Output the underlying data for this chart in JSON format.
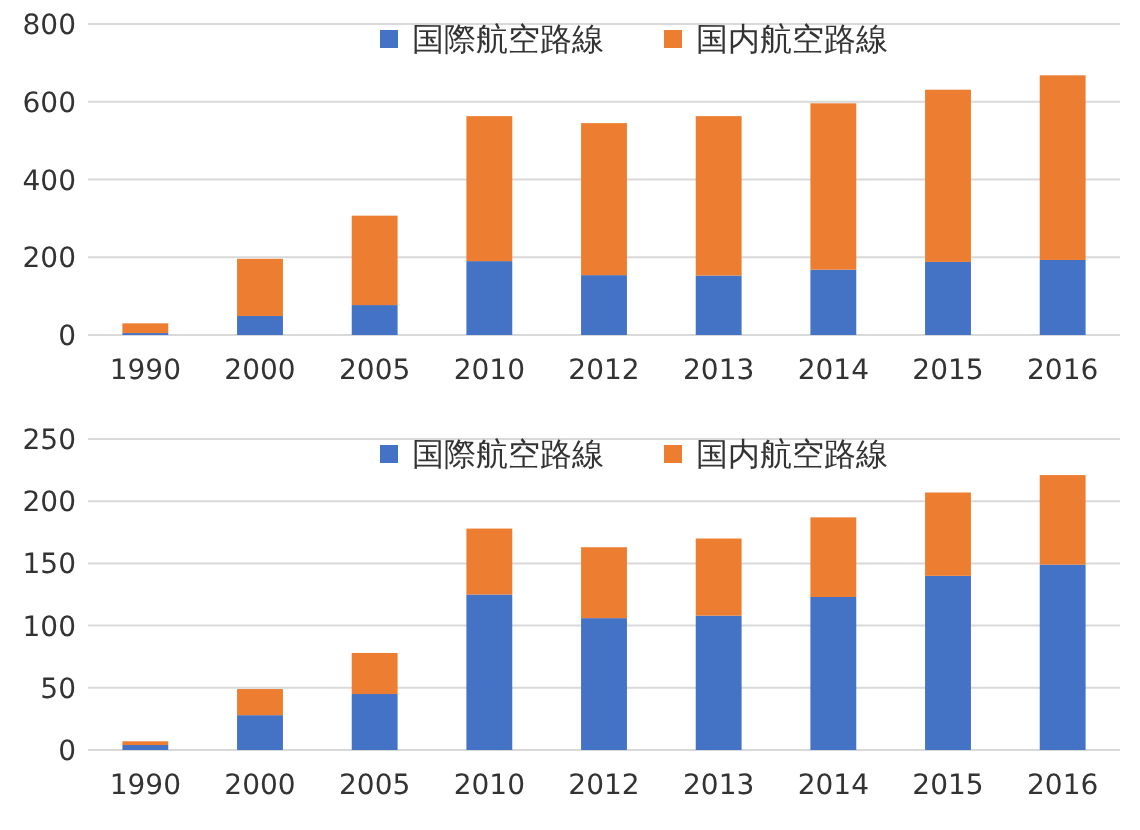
{
  "chart_data": [
    {
      "type": "bar",
      "stacked": true,
      "categories": [
        "1990",
        "2000",
        "2005",
        "2010",
        "2012",
        "2013",
        "2014",
        "2015",
        "2016"
      ],
      "series": [
        {
          "name": "国際航空路線",
          "color": "#4472c4",
          "values": [
            5,
            49,
            77,
            190,
            154,
            153,
            168,
            188,
            193
          ]
        },
        {
          "name": "国内航空路線",
          "color": "#ed7d31",
          "values": [
            25,
            147,
            230,
            373,
            391,
            410,
            428,
            443,
            475
          ]
        }
      ],
      "ylim": [
        0,
        800
      ],
      "yticks": [
        0,
        200,
        400,
        600,
        800
      ],
      "grid": "y",
      "legend": "top"
    },
    {
      "type": "bar",
      "stacked": true,
      "categories": [
        "1990",
        "2000",
        "2005",
        "2010",
        "2012",
        "2013",
        "2014",
        "2015",
        "2016"
      ],
      "series": [
        {
          "name": "国際航空路線",
          "color": "#4472c4",
          "values": [
            4,
            28,
            45,
            125,
            106,
            108,
            123,
            140,
            149
          ]
        },
        {
          "name": "国内航空路線",
          "color": "#ed7d31",
          "values": [
            3,
            21,
            33,
            53,
            57,
            62,
            64,
            67,
            72
          ]
        }
      ],
      "ylim": [
        0,
        250
      ],
      "yticks": [
        0,
        50,
        100,
        150,
        200,
        250
      ],
      "grid": "y",
      "legend": "top"
    }
  ]
}
